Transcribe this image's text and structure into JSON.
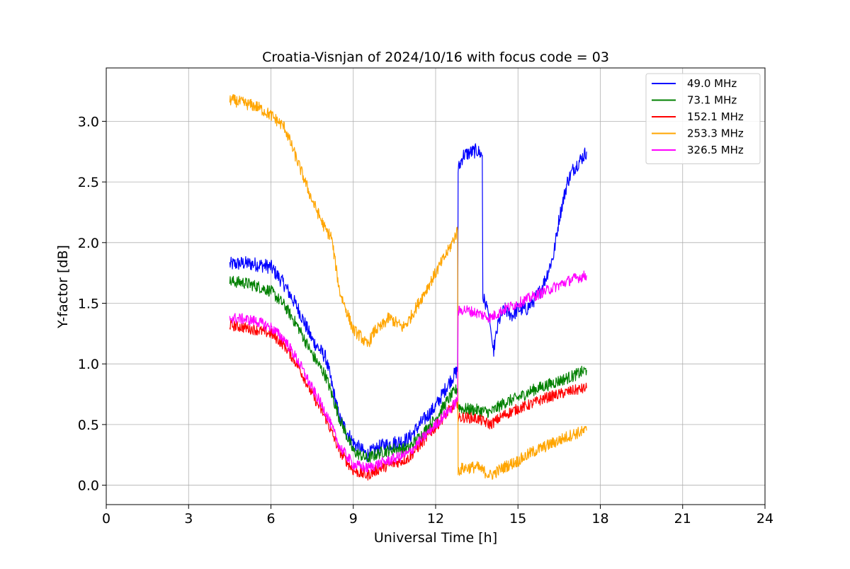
{
  "chart_data": {
    "type": "line",
    "title": "Croatia-Visnjan of 2024/10/16 with focus code = 03",
    "xlabel": "Universal Time [h]",
    "ylabel": "Y-factor [dB]",
    "xlim": [
      0,
      24
    ],
    "ylim": [
      -0.16,
      3.44
    ],
    "xticks": [
      0,
      3,
      6,
      9,
      12,
      15,
      18,
      21,
      24
    ],
    "xtick_labels": [
      "0",
      "3",
      "6",
      "9",
      "12",
      "15",
      "18",
      "21",
      "24"
    ],
    "yticks": [
      0.0,
      0.5,
      1.0,
      1.5,
      2.0,
      2.5,
      3.0
    ],
    "ytick_labels": [
      "0.0",
      "0.5",
      "1.0",
      "1.5",
      "2.0",
      "2.5",
      "3.0"
    ],
    "grid": true,
    "legend_position": "top-right",
    "series": [
      {
        "name": " 49.0 MHz",
        "color": "#0000ff",
        "noise": 0.06,
        "x": [
          4.5,
          5.0,
          5.5,
          6.0,
          6.5,
          7.0,
          7.5,
          8.0,
          8.5,
          9.0,
          9.5,
          10.0,
          10.5,
          11.0,
          11.5,
          12.0,
          12.5,
          12.8,
          12.82,
          13.0,
          13.5,
          13.7,
          13.72,
          13.9,
          14.0,
          14.1,
          14.3,
          14.5,
          14.8,
          15.0,
          15.3,
          15.5,
          15.8,
          16.0,
          16.3,
          16.5,
          16.8,
          17.0,
          17.5
        ],
        "y": [
          1.82,
          1.83,
          1.82,
          1.8,
          1.65,
          1.45,
          1.2,
          1.05,
          0.55,
          0.35,
          0.25,
          0.32,
          0.35,
          0.38,
          0.52,
          0.65,
          0.85,
          0.95,
          2.6,
          2.72,
          2.76,
          2.72,
          1.55,
          1.45,
          1.3,
          1.1,
          1.35,
          1.45,
          1.4,
          1.45,
          1.45,
          1.5,
          1.6,
          1.7,
          1.9,
          2.2,
          2.5,
          2.6,
          2.75
        ]
      },
      {
        "name": " 73.1 MHz",
        "color": "#008000",
        "noise": 0.05,
        "x": [
          4.5,
          5.0,
          5.5,
          6.0,
          6.5,
          7.0,
          7.5,
          8.0,
          8.5,
          9.0,
          9.5,
          10.0,
          10.5,
          11.0,
          11.5,
          12.0,
          12.5,
          12.8,
          12.82,
          13.0,
          13.5,
          14.0,
          14.5,
          15.0,
          15.5,
          16.0,
          16.5,
          17.0,
          17.5
        ],
        "y": [
          1.68,
          1.67,
          1.64,
          1.6,
          1.48,
          1.3,
          1.08,
          0.9,
          0.55,
          0.28,
          0.22,
          0.27,
          0.3,
          0.3,
          0.42,
          0.55,
          0.72,
          0.8,
          0.65,
          0.63,
          0.62,
          0.6,
          0.68,
          0.72,
          0.78,
          0.82,
          0.86,
          0.9,
          0.95
        ]
      },
      {
        "name": " 152.1 MHz",
        "color": "#ff0000",
        "noise": 0.045,
        "x": [
          4.5,
          5.0,
          5.5,
          6.0,
          6.5,
          7.0,
          7.5,
          8.0,
          8.5,
          9.0,
          9.5,
          10.0,
          10.5,
          11.0,
          11.5,
          12.0,
          12.5,
          12.8,
          12.82,
          13.0,
          13.5,
          14.0,
          14.5,
          15.0,
          15.5,
          16.0,
          16.5,
          17.0,
          17.5
        ],
        "y": [
          1.32,
          1.3,
          1.28,
          1.25,
          1.15,
          0.98,
          0.75,
          0.55,
          0.28,
          0.12,
          0.08,
          0.14,
          0.18,
          0.22,
          0.35,
          0.48,
          0.62,
          0.68,
          0.55,
          0.56,
          0.55,
          0.5,
          0.58,
          0.63,
          0.67,
          0.72,
          0.75,
          0.78,
          0.8
        ]
      },
      {
        "name": " 253.3 MHz",
        "color": "#ffa500",
        "noise": 0.05,
        "x": [
          4.5,
          5.0,
          5.5,
          6.0,
          6.5,
          7.0,
          7.5,
          8.0,
          8.2,
          8.5,
          9.0,
          9.3,
          9.5,
          9.8,
          10.0,
          10.3,
          10.5,
          10.8,
          11.0,
          11.5,
          12.0,
          12.5,
          12.8,
          12.82,
          13.0,
          13.5,
          14.0,
          14.5,
          15.0,
          15.5,
          16.0,
          16.5,
          17.0,
          17.5
        ],
        "y": [
          3.18,
          3.15,
          3.12,
          3.05,
          2.95,
          2.65,
          2.35,
          2.1,
          2.05,
          1.6,
          1.28,
          1.22,
          1.15,
          1.28,
          1.3,
          1.38,
          1.35,
          1.3,
          1.35,
          1.55,
          1.75,
          1.95,
          2.1,
          0.12,
          0.14,
          0.15,
          0.08,
          0.15,
          0.2,
          0.27,
          0.32,
          0.37,
          0.42,
          0.45
        ]
      },
      {
        "name": " 326.5 MHz",
        "color": "#ff00ff",
        "noise": 0.045,
        "x": [
          4.5,
          5.0,
          5.5,
          6.0,
          6.5,
          7.0,
          7.5,
          8.0,
          8.5,
          9.0,
          9.5,
          10.0,
          10.5,
          11.0,
          11.5,
          12.0,
          12.5,
          12.8,
          12.82,
          13.0,
          13.5,
          14.0,
          14.5,
          15.0,
          15.5,
          16.0,
          16.5,
          17.0,
          17.5
        ],
        "y": [
          1.38,
          1.37,
          1.35,
          1.3,
          1.2,
          1.02,
          0.8,
          0.6,
          0.32,
          0.17,
          0.14,
          0.18,
          0.22,
          0.26,
          0.38,
          0.5,
          0.62,
          0.7,
          1.43,
          1.45,
          1.42,
          1.38,
          1.45,
          1.5,
          1.55,
          1.6,
          1.65,
          1.7,
          1.73
        ]
      }
    ]
  }
}
